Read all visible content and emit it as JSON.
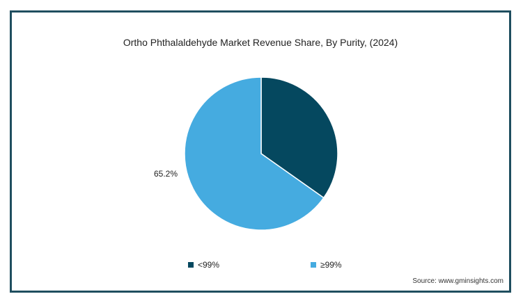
{
  "chart_data": {
    "type": "pie",
    "title": "Ortho Phthalaldehyde Market Revenue Share, By Purity, (2024)",
    "categories": [
      "<99%",
      "≥99%"
    ],
    "values": [
      34.8,
      65.2
    ],
    "colors": [
      "#05485f",
      "#45abe0"
    ],
    "data_labels": {
      "≥99%": "65.2%"
    },
    "legend_position": "bottom"
  },
  "source": "Source: www.gminsights.com"
}
